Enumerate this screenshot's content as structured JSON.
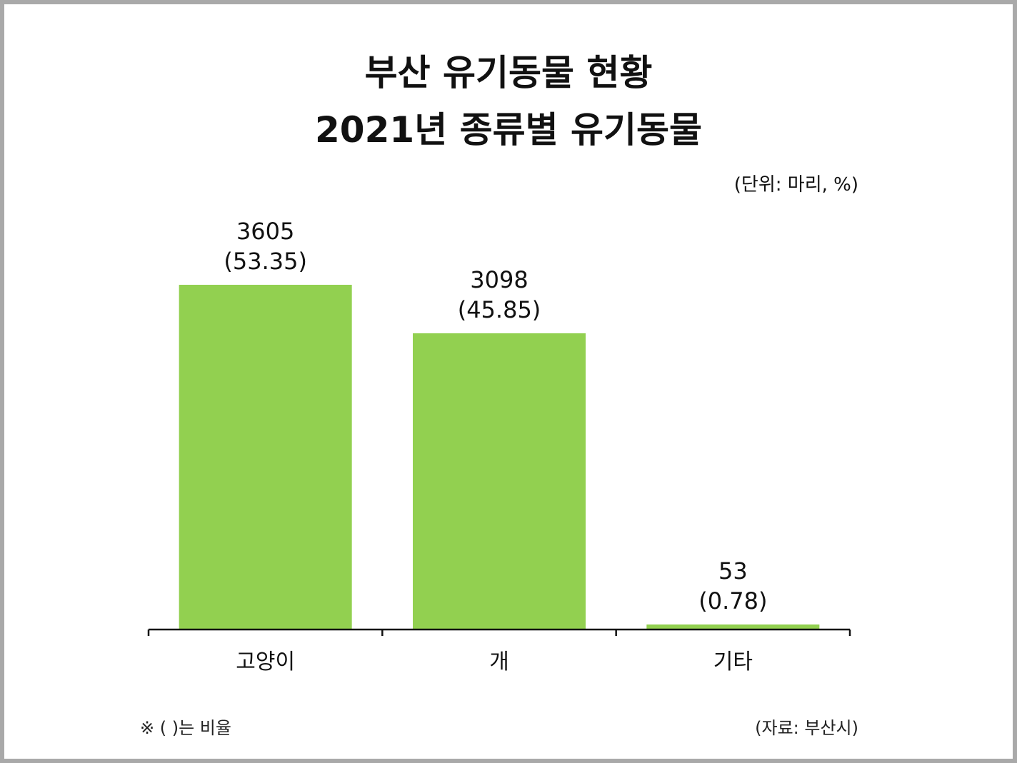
{
  "title_line1": "부산 유기동물 현황",
  "title_line2": "2021년 종류별 유기동물",
  "unit_note": "(단위: 마리, %)",
  "footnote": "※ ( )는 비율",
  "source": "(자료: 부산시)",
  "colors": {
    "bar": "#92d050",
    "axis": "#111111",
    "frame": "#a9a9a9"
  },
  "chart_data": {
    "type": "bar",
    "categories": [
      "고양이",
      "개",
      "기타"
    ],
    "values": [
      3605,
      3098,
      53
    ],
    "value_labels": [
      "3605",
      "3098",
      "53"
    ],
    "percent_labels": [
      "(53.35)",
      "(45.85)",
      "(0.78)"
    ],
    "percents": [
      53.35,
      45.85,
      0.78
    ],
    "ylim": [
      0,
      3605
    ],
    "grid": false,
    "legend": "none"
  }
}
